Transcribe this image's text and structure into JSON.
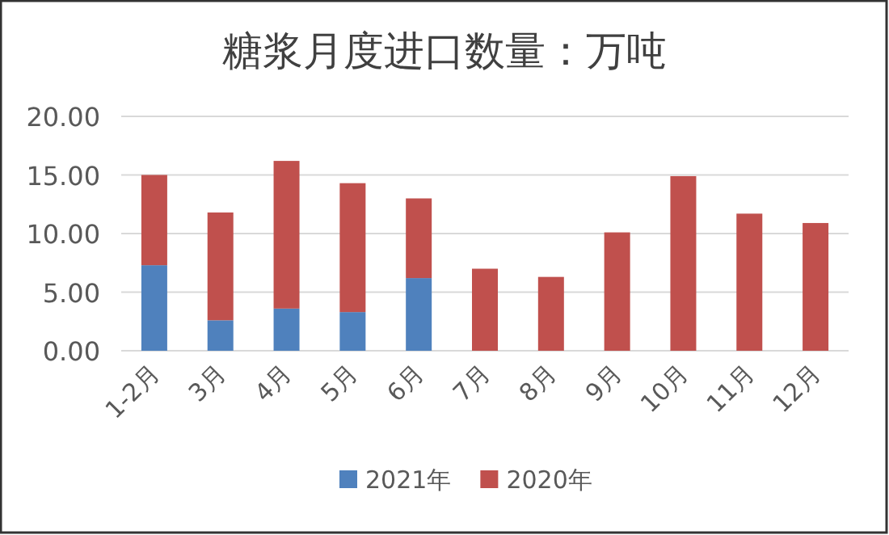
{
  "chart_data": {
    "type": "bar",
    "title": "糖浆月度进口数量：万吨",
    "stacked": true,
    "categories": [
      "1-2月",
      "3月",
      "4月",
      "5月",
      "6月",
      "7月",
      "8月",
      "9月",
      "10月",
      "11月",
      "12月"
    ],
    "series": [
      {
        "name": "2021年",
        "color": "#4f81bd",
        "values": [
          7.3,
          2.6,
          3.6,
          3.3,
          6.2,
          null,
          null,
          null,
          null,
          null,
          null
        ]
      },
      {
        "name": "2020年",
        "color": "#c0504d",
        "values": [
          7.7,
          9.2,
          12.6,
          11.0,
          6.8,
          7.0,
          6.3,
          10.1,
          14.9,
          11.7,
          10.9
        ]
      }
    ],
    "ylim": [
      0,
      20
    ],
    "yticks": [
      {
        "value": 0,
        "label": "0.00"
      },
      {
        "value": 5,
        "label": "5.00"
      },
      {
        "value": 10,
        "label": "10.00"
      },
      {
        "value": 15,
        "label": "15.00"
      },
      {
        "value": 20,
        "label": "20.00"
      }
    ],
    "grid": "y",
    "legend": "bottom"
  }
}
